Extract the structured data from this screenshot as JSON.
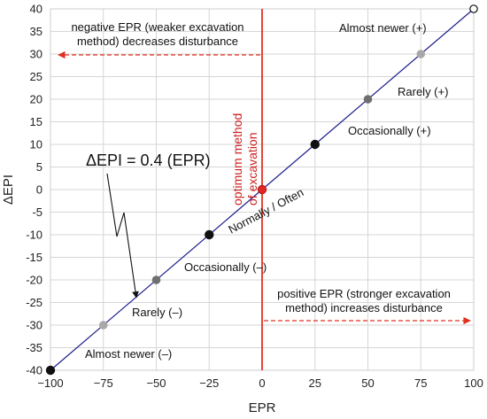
{
  "chart_data": {
    "type": "line",
    "xlabel": "EPR",
    "ylabel": "ΔEPI",
    "xlim": [
      -100,
      100
    ],
    "ylim": [
      -40,
      40
    ],
    "xticks": [
      -100,
      -75,
      -50,
      -25,
      0,
      25,
      50,
      75,
      100
    ],
    "yticks": [
      -40,
      -35,
      -30,
      -25,
      -20,
      -15,
      -10,
      -5,
      0,
      5,
      10,
      15,
      20,
      25,
      30,
      35,
      40
    ],
    "grid": true,
    "equation": "ΔEPI = 0.4 (EPR)",
    "line": {
      "x": [
        -100,
        100
      ],
      "y": [
        -40,
        40
      ],
      "color": "#1c1c8c"
    },
    "vertical_line": {
      "x": 0,
      "color": "#e03020",
      "label_line1": "optimum method",
      "label_line2": "of excavation"
    },
    "points": [
      {
        "x": -100,
        "y": -40,
        "style": "black"
      },
      {
        "x": -75,
        "y": -30,
        "style": "light-gray"
      },
      {
        "x": -50,
        "y": -20,
        "style": "gray"
      },
      {
        "x": -25,
        "y": -10,
        "style": "black"
      },
      {
        "x": 0,
        "y": 0,
        "style": "red"
      },
      {
        "x": 25,
        "y": 10,
        "style": "black"
      },
      {
        "x": 50,
        "y": 20,
        "style": "gray"
      },
      {
        "x": 75,
        "y": 30,
        "style": "light-gray"
      },
      {
        "x": 100,
        "y": 40,
        "style": "white"
      }
    ],
    "annotations": {
      "almost_newer_plus": "Almost newer (+)",
      "rarely_plus": "Rarely (+)",
      "occasionally_plus": "Occasionally (+)",
      "normally_often": "Normally / Often",
      "occasionally_minus": "Occasionally (–)",
      "rarely_minus": "Rarely (–)",
      "almost_newer_minus": "Almost newer (–)",
      "negative_line1": "negative EPR (weaker excavation",
      "negative_line2": "method) decreases disturbance",
      "positive_line1": "positive EPR (stronger excavation",
      "positive_line2": "method) increases disturbance"
    }
  }
}
